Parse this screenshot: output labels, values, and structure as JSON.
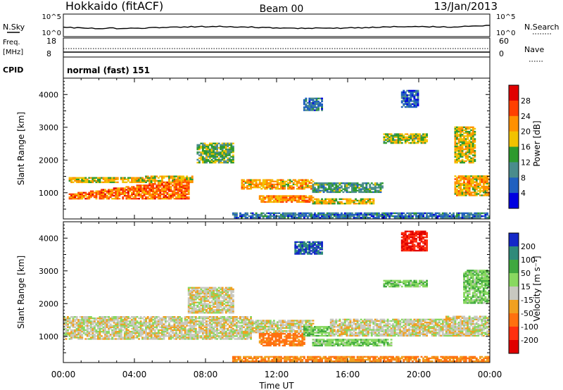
{
  "header": {
    "station": "Hokkaido (fitACF)",
    "beam": "Beam 00",
    "date": "13/Jan/2013"
  },
  "top_panels": {
    "nsky_label": "N.Sky",
    "nsky_ticks": [
      "10^5",
      "10^0"
    ],
    "nsearch_label": "N.Search",
    "nsearch_ticks": [
      "10^5",
      "10^0"
    ],
    "freq_label": "Freq.",
    "freq_unit": "[MHz]",
    "freq_ticks": [
      "18",
      "8"
    ],
    "nave_label": "Nave",
    "nave_ticks": [
      "60",
      "0"
    ],
    "cpid_label": "CPID",
    "cpid_text": "normal (fast) 151"
  },
  "axes": {
    "ylabel": "Slant Range [km]",
    "yticks": [
      "4000",
      "3000",
      "2000",
      "1000"
    ],
    "xlabel": "Time UT",
    "xticks": [
      "00:00",
      "04:00",
      "08:00",
      "12:00",
      "16:00",
      "20:00",
      "00:00"
    ]
  },
  "power_scale": {
    "title": "Power [dB]",
    "labels": [
      "28",
      "24",
      "20",
      "16",
      "12",
      "8",
      "4"
    ],
    "colors": [
      "#e00000",
      "#ff4000",
      "#ff9000",
      "#f2c200",
      "#2e9a2e",
      "#4a8c8c",
      "#2060c0",
      "#0000e0"
    ]
  },
  "velocity_scale": {
    "title": "Velocity [m s⁻¹]",
    "labels": [
      "200",
      "100",
      "50",
      "15",
      "-15",
      "-50",
      "-100",
      "-200"
    ],
    "colors": [
      "#1428c8",
      "#2f8a7a",
      "#3fa83f",
      "#88d860",
      "#c8c8c0",
      "#f0a020",
      "#ff7010",
      "#ff3010",
      "#e00000"
    ]
  },
  "chart_data": [
    {
      "type": "heatmap",
      "title": "Power [dB]",
      "xlabel": "Time UT",
      "ylabel": "Slant Range [km]",
      "xlim": [
        0,
        24
      ],
      "ylim": [
        200,
        4500
      ],
      "color_range": [
        0,
        32
      ],
      "features": [
        {
          "t0": 0.3,
          "t1": 7.2,
          "r0": 1300,
          "r1": 1450,
          "r1_end": 1500,
          "value": 18
        },
        {
          "t0": 0.3,
          "t1": 7.0,
          "r0": 800,
          "r1": 950,
          "r1_end": 1400,
          "value": 24
        },
        {
          "t0": 10.0,
          "t1": 14.0,
          "r0": 1100,
          "r1": 1400,
          "value": 20
        },
        {
          "t0": 11.0,
          "t1": 14.0,
          "r0": 700,
          "r1": 900,
          "value": 22
        },
        {
          "t0": 14.0,
          "t1": 18.0,
          "r0": 1000,
          "r1": 1300,
          "value": 12
        },
        {
          "t0": 14.0,
          "t1": 17.5,
          "r0": 650,
          "r1": 800,
          "value": 18
        },
        {
          "t0": 7.5,
          "t1": 9.5,
          "r0": 1900,
          "r1": 2500,
          "value": 14
        },
        {
          "t0": 22.0,
          "t1": 24.0,
          "r0": 900,
          "r1": 1500,
          "value": 20
        },
        {
          "t0": 22.0,
          "t1": 23.2,
          "r0": 1900,
          "r1": 3000,
          "value": 18
        },
        {
          "t0": 13.5,
          "t1": 14.5,
          "r0": 3500,
          "r1": 3900,
          "value": 8
        },
        {
          "t0": 18.0,
          "t1": 20.5,
          "r0": 2500,
          "r1": 2800,
          "value": 16
        },
        {
          "t0": 19.0,
          "t1": 20.0,
          "r0": 3600,
          "r1": 4100,
          "value": 6
        },
        {
          "t0": 9.5,
          "t1": 24.0,
          "r0": 220,
          "r1": 400,
          "value": 8
        }
      ]
    },
    {
      "type": "heatmap",
      "title": "Velocity [m s⁻¹]",
      "xlabel": "Time UT",
      "ylabel": "Slant Range [km]",
      "xlim": [
        0,
        24
      ],
      "ylim": [
        200,
        4500
      ],
      "color_range": [
        -200,
        200
      ],
      "features": [
        {
          "t0": 0.0,
          "t1": 10.5,
          "r0": 900,
          "r1": 1600,
          "value": 0
        },
        {
          "t0": 7.0,
          "t1": 9.5,
          "r0": 1700,
          "r1": 2500,
          "value": 0
        },
        {
          "t0": 10.5,
          "t1": 14.0,
          "r0": 1100,
          "r1": 1500,
          "value": 0
        },
        {
          "t0": 11.0,
          "t1": 13.5,
          "r0": 700,
          "r1": 1100,
          "value": -70
        },
        {
          "t0": 13.5,
          "t1": 15.0,
          "r0": 1000,
          "r1": 1300,
          "value": 40
        },
        {
          "t0": 14.0,
          "t1": 18.5,
          "r0": 700,
          "r1": 900,
          "value": 40
        },
        {
          "t0": 15.0,
          "t1": 22.0,
          "r0": 1000,
          "r1": 1500,
          "value": 0
        },
        {
          "t0": 21.5,
          "t1": 24.0,
          "r0": 1000,
          "r1": 1600,
          "value": 0
        },
        {
          "t0": 13.0,
          "t1": 14.5,
          "r0": 3500,
          "r1": 3900,
          "value": 200
        },
        {
          "t0": 19.0,
          "t1": 20.5,
          "r0": 3600,
          "r1": 4200,
          "value": -200
        },
        {
          "t0": 18.0,
          "t1": 20.5,
          "r0": 2500,
          "r1": 2700,
          "value": 40
        },
        {
          "t0": 22.5,
          "t1": 24.0,
          "r0": 2000,
          "r1": 3000,
          "value": 40
        },
        {
          "t0": 9.5,
          "t1": 24.0,
          "r0": 220,
          "r1": 400,
          "value": -50
        }
      ]
    }
  ]
}
